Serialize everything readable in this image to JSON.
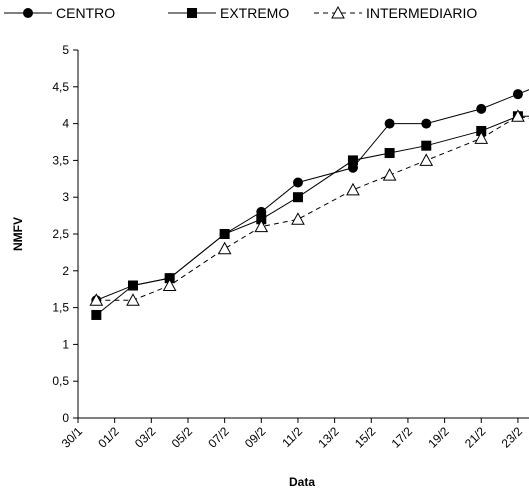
{
  "chart_data": {
    "type": "line",
    "title": "",
    "xlabel": "Data",
    "ylabel": "NMFV",
    "ylim": [
      0,
      5
    ],
    "yticks": [
      "0",
      "0,5",
      "1",
      "1,5",
      "2",
      "2,5",
      "3",
      "3,5",
      "4",
      "4,5",
      "5"
    ],
    "x_ticks": [
      "30/1",
      "01/2",
      "03/2",
      "05/2",
      "07/2",
      "09/2",
      "11/2",
      "13/2",
      "15/2",
      "17/2",
      "19/2",
      "21/2",
      "23/2"
    ],
    "grid": false,
    "legend_position": "top",
    "series": [
      {
        "name": "CENTRO",
        "marker": "circle",
        "line": "solid",
        "color": "#000000",
        "x": [
          "31/1",
          "02/2",
          "04/2",
          "07/2",
          "09/2",
          "11/2",
          "14/2",
          "16/2",
          "18/2",
          "21/2",
          "23/2",
          "25/2"
        ],
        "values": [
          1.6,
          1.8,
          1.9,
          2.5,
          2.8,
          3.2,
          3.4,
          4.0,
          4.0,
          4.2,
          4.4,
          4.6
        ]
      },
      {
        "name": "EXTREMO",
        "marker": "square",
        "line": "solid",
        "color": "#000000",
        "x": [
          "31/1",
          "02/2",
          "04/2",
          "07/2",
          "09/2",
          "11/2",
          "14/2",
          "16/2",
          "18/2",
          "21/2",
          "23/2",
          "25/2"
        ],
        "values": [
          1.4,
          1.8,
          1.9,
          2.5,
          2.7,
          3.0,
          3.5,
          3.6,
          3.7,
          3.9,
          4.1,
          4.1
        ]
      },
      {
        "name": "INTERMEDIARIO",
        "marker": "triangle",
        "line": "dashed",
        "color": "#000000",
        "x": [
          "31/1",
          "02/2",
          "04/2",
          "07/2",
          "09/2",
          "11/2",
          "14/2",
          "16/2",
          "18/2",
          "21/2",
          "23/2",
          "25/2"
        ],
        "values": [
          1.6,
          1.6,
          1.8,
          2.3,
          2.6,
          2.7,
          3.1,
          3.3,
          3.5,
          3.8,
          4.1,
          4.0
        ]
      }
    ]
  }
}
